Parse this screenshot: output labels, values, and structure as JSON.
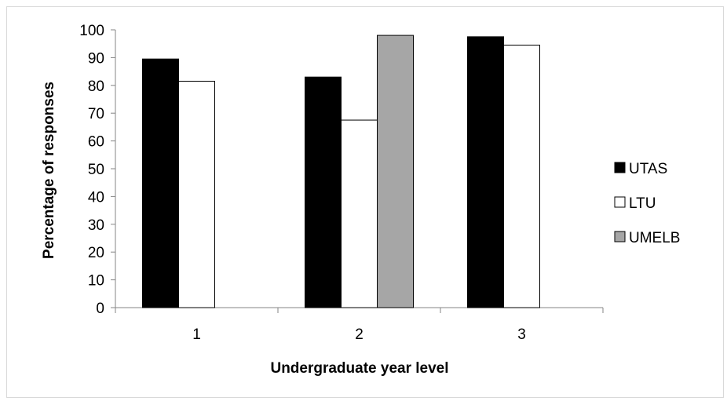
{
  "chart_data": {
    "type": "bar",
    "title": "",
    "xlabel": "Undergraduate year level",
    "ylabel": "Percentage of responses",
    "categories": [
      "1",
      "2",
      "3"
    ],
    "ylim": [
      0,
      100
    ],
    "yticks": [
      "0",
      "10",
      "20",
      "30",
      "40",
      "50",
      "60",
      "70",
      "80",
      "90",
      "100"
    ],
    "grid": false,
    "legend_position": "right",
    "series": [
      {
        "name": "UTAS",
        "color": "#000000",
        "values": [
          89.5,
          83,
          97.5
        ]
      },
      {
        "name": "LTU",
        "color": "#ffffff",
        "values": [
          81.5,
          67.5,
          94.5
        ]
      },
      {
        "name": "UMELB",
        "color": "#a6a6a6",
        "values": [
          null,
          98,
          null
        ]
      }
    ]
  }
}
